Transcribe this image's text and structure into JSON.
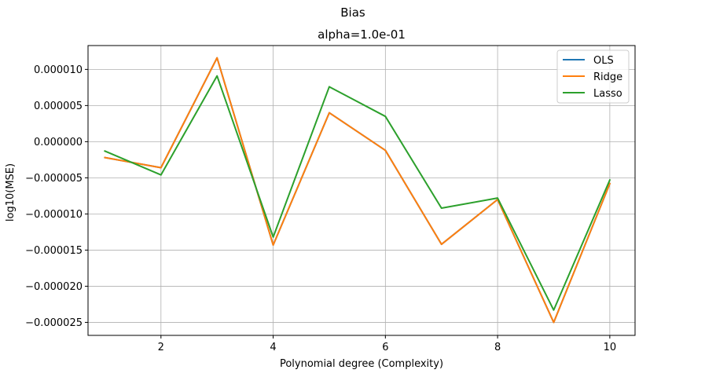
{
  "chart_data": {
    "type": "line",
    "suptitle": "Bias",
    "title": "alpha=1.0e-01",
    "xlabel": "Polynomial degree (Complexity)",
    "ylabel": "log10(MSE)",
    "xlim": [
      0.7,
      10.45
    ],
    "ylim": [
      -2.68e-05,
      1.33e-05
    ],
    "x_ticks": [
      2,
      4,
      6,
      8,
      10
    ],
    "x_tick_labels": [
      "2",
      "4",
      "6",
      "8",
      "10"
    ],
    "y_ticks": [
      1e-05,
      5e-06,
      0.0,
      -5e-06,
      -1e-05,
      -1.5e-05,
      -2e-05,
      -2.5e-05
    ],
    "y_tick_labels": [
      "0.000010",
      "0.000005",
      "0.000000",
      "−0.000005",
      "−0.000010",
      "−0.000015",
      "−0.000020",
      "−0.000025"
    ],
    "grid": true,
    "legend_position": "top-right",
    "x": [
      1,
      2,
      3,
      4,
      5,
      6,
      7,
      8,
      9,
      10
    ],
    "series": [
      {
        "name": "OLS",
        "color": "#1f77b4",
        "values": [
          -2.2e-06,
          -3.6e-06,
          1.16e-05,
          -1.43e-05,
          4e-06,
          -1.2e-06,
          -1.42e-05,
          -8e-06,
          -2.5e-05,
          -5.8e-06
        ]
      },
      {
        "name": "Ridge",
        "color": "#ff7f0e",
        "values": [
          -2.2e-06,
          -3.6e-06,
          1.16e-05,
          -1.43e-05,
          4e-06,
          -1.2e-06,
          -1.42e-05,
          -8e-06,
          -2.5e-05,
          -5.8e-06
        ]
      },
      {
        "name": "Lasso",
        "color": "#2ca02c",
        "values": [
          -1.3e-06,
          -4.6e-06,
          9.1e-06,
          -1.32e-05,
          7.6e-06,
          3.5e-06,
          -9.2e-06,
          -7.8e-06,
          -2.33e-05,
          -5.3e-06
        ]
      }
    ]
  }
}
